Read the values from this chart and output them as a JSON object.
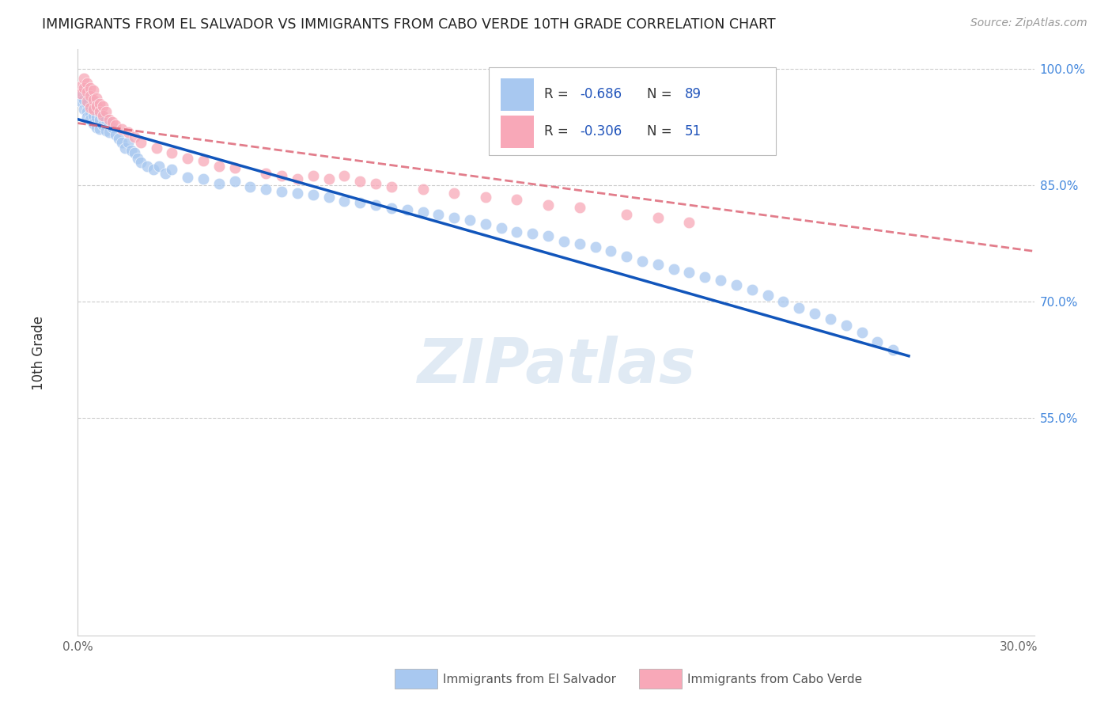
{
  "title": "IMMIGRANTS FROM EL SALVADOR VS IMMIGRANTS FROM CABO VERDE 10TH GRADE CORRELATION CHART",
  "source": "Source: ZipAtlas.com",
  "ylabel": "10th Grade",
  "x_min": 0.0,
  "x_max": 0.305,
  "y_min": 0.27,
  "y_max": 1.025,
  "color_blue": "#a8c8f0",
  "color_pink": "#f8a8b8",
  "color_trend_blue": "#1155bb",
  "color_trend_pink": "#dd6677",
  "watermark": "ZIPatlas",
  "legend_label1": "Immigrants from El Salvador",
  "legend_label2": "Immigrants from Cabo Verde",
  "el_salvador_x": [
    0.001,
    0.001,
    0.002,
    0.002,
    0.002,
    0.003,
    0.003,
    0.003,
    0.003,
    0.004,
    0.004,
    0.004,
    0.005,
    0.005,
    0.005,
    0.005,
    0.006,
    0.006,
    0.006,
    0.007,
    0.007,
    0.007,
    0.008,
    0.008,
    0.009,
    0.009,
    0.01,
    0.01,
    0.011,
    0.012,
    0.013,
    0.014,
    0.015,
    0.016,
    0.017,
    0.018,
    0.019,
    0.02,
    0.022,
    0.024,
    0.026,
    0.028,
    0.03,
    0.035,
    0.04,
    0.045,
    0.05,
    0.055,
    0.06,
    0.065,
    0.07,
    0.075,
    0.08,
    0.085,
    0.09,
    0.095,
    0.1,
    0.105,
    0.11,
    0.115,
    0.12,
    0.125,
    0.13,
    0.135,
    0.14,
    0.145,
    0.15,
    0.155,
    0.16,
    0.165,
    0.17,
    0.175,
    0.18,
    0.185,
    0.19,
    0.195,
    0.2,
    0.205,
    0.21,
    0.215,
    0.22,
    0.225,
    0.23,
    0.235,
    0.24,
    0.245,
    0.25,
    0.255,
    0.26
  ],
  "el_salvador_y": [
    0.965,
    0.958,
    0.972,
    0.96,
    0.948,
    0.962,
    0.955,
    0.945,
    0.938,
    0.952,
    0.942,
    0.935,
    0.958,
    0.948,
    0.94,
    0.93,
    0.945,
    0.938,
    0.925,
    0.942,
    0.935,
    0.922,
    0.938,
    0.928,
    0.935,
    0.92,
    0.93,
    0.918,
    0.925,
    0.915,
    0.91,
    0.905,
    0.898,
    0.905,
    0.895,
    0.892,
    0.885,
    0.88,
    0.875,
    0.87,
    0.875,
    0.865,
    0.87,
    0.86,
    0.858,
    0.852,
    0.855,
    0.848,
    0.845,
    0.842,
    0.84,
    0.838,
    0.835,
    0.83,
    0.828,
    0.825,
    0.82,
    0.818,
    0.815,
    0.812,
    0.808,
    0.805,
    0.8,
    0.795,
    0.79,
    0.788,
    0.785,
    0.778,
    0.775,
    0.77,
    0.765,
    0.758,
    0.752,
    0.748,
    0.742,
    0.738,
    0.732,
    0.728,
    0.722,
    0.715,
    0.708,
    0.7,
    0.692,
    0.685,
    0.678,
    0.67,
    0.66,
    0.648,
    0.638
  ],
  "cabo_verde_x": [
    0.001,
    0.001,
    0.002,
    0.002,
    0.003,
    0.003,
    0.003,
    0.004,
    0.004,
    0.004,
    0.005,
    0.005,
    0.005,
    0.006,
    0.006,
    0.007,
    0.007,
    0.008,
    0.008,
    0.009,
    0.01,
    0.011,
    0.012,
    0.014,
    0.016,
    0.018,
    0.02,
    0.025,
    0.03,
    0.035,
    0.04,
    0.045,
    0.05,
    0.06,
    0.065,
    0.07,
    0.075,
    0.08,
    0.085,
    0.09,
    0.095,
    0.1,
    0.11,
    0.12,
    0.13,
    0.14,
    0.15,
    0.16,
    0.175,
    0.185,
    0.195
  ],
  "cabo_verde_y": [
    0.978,
    0.968,
    0.988,
    0.975,
    0.982,
    0.97,
    0.958,
    0.975,
    0.965,
    0.95,
    0.972,
    0.96,
    0.948,
    0.962,
    0.952,
    0.955,
    0.945,
    0.952,
    0.94,
    0.945,
    0.935,
    0.932,
    0.928,
    0.922,
    0.918,
    0.912,
    0.905,
    0.898,
    0.892,
    0.885,
    0.882,
    0.875,
    0.872,
    0.865,
    0.862,
    0.858,
    0.862,
    0.858,
    0.862,
    0.855,
    0.852,
    0.848,
    0.845,
    0.84,
    0.835,
    0.832,
    0.825,
    0.822,
    0.812,
    0.808,
    0.802
  ],
  "trend_blue_x0": 0.0,
  "trend_blue_y0": 0.935,
  "trend_blue_x1": 0.265,
  "trend_blue_y1": 0.63,
  "trend_pink_x0": 0.0,
  "trend_pink_y0": 0.93,
  "trend_pink_x1": 0.265,
  "trend_pink_y1": 0.785
}
